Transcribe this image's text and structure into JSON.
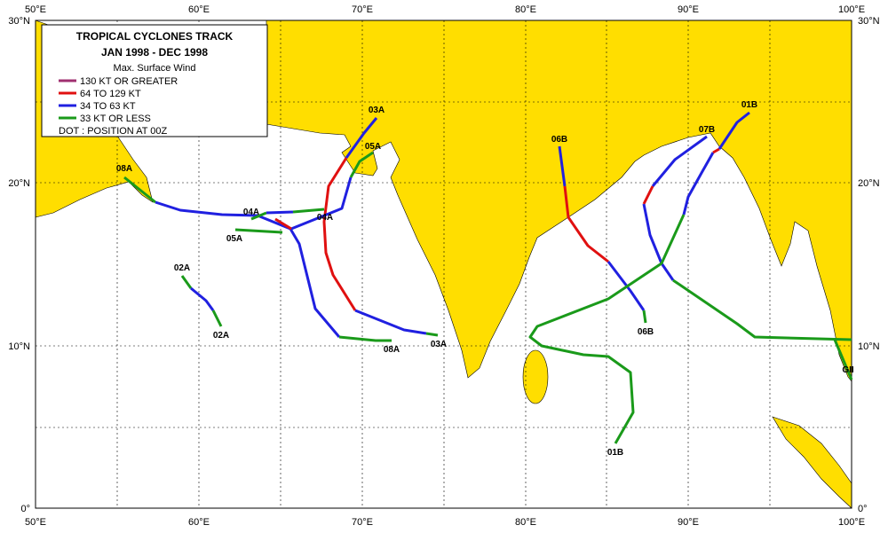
{
  "map": {
    "lon_labels": [
      "50°E",
      "60°E",
      "70°E",
      "80°E",
      "90°E",
      "100°E"
    ],
    "lat_labels": [
      "0°",
      "10°N",
      "20°N",
      "30°N"
    ]
  },
  "legend": {
    "title": "TROPICAL  CYCLONES TRACK",
    "period": "JAN 1998  -  DEC 1998",
    "subtitle": "Max. Surface Wind",
    "items": [
      "130 KT OR GREATER",
      "64 TO 129 KT",
      "34 TO 63 KT",
      "33 KT OR LESS"
    ],
    "note": "DOT : POSITION AT 00Z"
  },
  "storm_labels": [
    "03A",
    "05A",
    "08A",
    "04A",
    "04A",
    "05A",
    "02A",
    "02A",
    "08A",
    "03A",
    "06B",
    "06B",
    "07B",
    "01B",
    "01B",
    "GII"
  ]
}
